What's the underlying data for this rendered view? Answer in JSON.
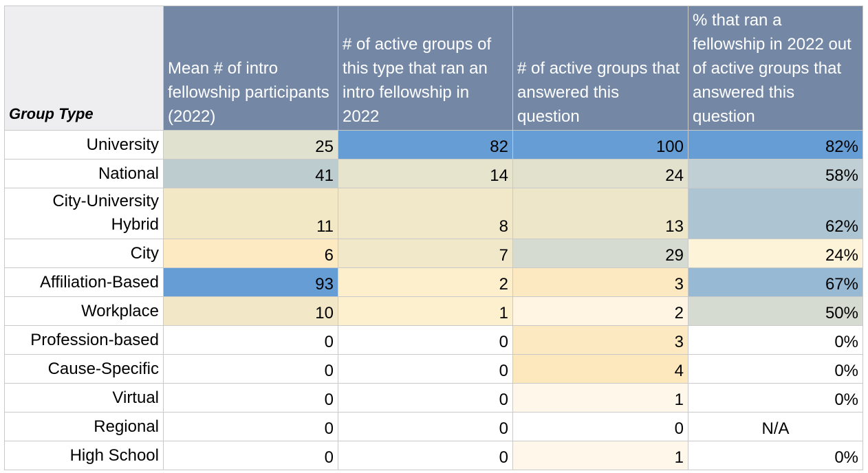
{
  "chart_data": {
    "type": "table",
    "columns": [
      "Group Type",
      "Mean # of intro fellowship participants (2022)",
      "# of active groups of this type that ran an intro fellowship in 2022",
      "# of active groups that answered this question",
      "% that ran a fellowship in 2022 out of active groups that answered this question"
    ],
    "rows": [
      {
        "label": "University",
        "cells": [
          {
            "text": "25",
            "color": "#e0e2cf"
          },
          {
            "text": "82",
            "color": "#669dd5"
          },
          {
            "text": "100",
            "color": "#669dd5"
          },
          {
            "text": "82%",
            "color": "#669dd5"
          }
        ]
      },
      {
        "label": "National",
        "cells": [
          {
            "text": "41",
            "color": "#bccccf"
          },
          {
            "text": "14",
            "color": "#e6e4cc"
          },
          {
            "text": "24",
            "color": "#e2e1ce"
          },
          {
            "text": "58%",
            "color": "#bfcfd4"
          }
        ]
      },
      {
        "label": "City-University Hybrid",
        "tall": true,
        "cells": [
          {
            "text": "11",
            "color": "#f3e8c6"
          },
          {
            "text": "8",
            "color": "#f1e8c9"
          },
          {
            "text": "13",
            "color": "#eee6c8"
          },
          {
            "text": "62%",
            "color": "#adc4d3"
          }
        ]
      },
      {
        "label": "City",
        "cells": [
          {
            "text": "6",
            "color": "#fdeac3"
          },
          {
            "text": "7",
            "color": "#f1e8c9"
          },
          {
            "text": "29",
            "color": "#d5dbd0"
          },
          {
            "text": "24%",
            "color": "#fdf3d8"
          }
        ]
      },
      {
        "label": "Affiliation-Based",
        "cells": [
          {
            "text": "93",
            "color": "#669dd5"
          },
          {
            "text": "2",
            "color": "#fdefcb"
          },
          {
            "text": "3",
            "color": "#fde9c1"
          },
          {
            "text": "67%",
            "color": "#98b9d3"
          }
        ]
      },
      {
        "label": "Workplace",
        "cells": [
          {
            "text": "10",
            "color": "#f2e7c7"
          },
          {
            "text": "1",
            "color": "#fdf0ce"
          },
          {
            "text": "2",
            "color": "#fff5e2"
          },
          {
            "text": "50%",
            "color": "#d5dbd0"
          }
        ]
      },
      {
        "label": "Profession-based",
        "cells": [
          {
            "text": "0",
            "color": "#ffffff"
          },
          {
            "text": "0",
            "color": "#ffffff"
          },
          {
            "text": "3",
            "color": "#fde9c1"
          },
          {
            "text": "0%",
            "color": "#ffffff"
          }
        ]
      },
      {
        "label": "Cause-Specific",
        "cells": [
          {
            "text": "0",
            "color": "#ffffff"
          },
          {
            "text": "0",
            "color": "#ffffff"
          },
          {
            "text": "4",
            "color": "#fde7bd"
          },
          {
            "text": "0%",
            "color": "#ffffff"
          }
        ]
      },
      {
        "label": "Virtual",
        "cells": [
          {
            "text": "0",
            "color": "#ffffff"
          },
          {
            "text": "0",
            "color": "#ffffff"
          },
          {
            "text": "1",
            "color": "#fff8ea"
          },
          {
            "text": "0%",
            "color": "#ffffff"
          }
        ]
      },
      {
        "label": "Regional",
        "cells": [
          {
            "text": "0",
            "color": "#ffffff"
          },
          {
            "text": "0",
            "color": "#ffffff"
          },
          {
            "text": "0",
            "color": "#ffffff"
          },
          {
            "text": "N/A",
            "color": "#ffffff",
            "na": true
          }
        ]
      },
      {
        "label": "High School",
        "cells": [
          {
            "text": "0",
            "color": "#ffffff"
          },
          {
            "text": "0",
            "color": "#ffffff"
          },
          {
            "text": "1",
            "color": "#fff8ea"
          },
          {
            "text": "0%",
            "color": "#ffffff"
          }
        ]
      }
    ]
  },
  "colors": {
    "header_bg": "#7488a6",
    "header_text": "#ffffff",
    "corner_bg": "#eeeef0",
    "grid": "#c9c9c9"
  }
}
